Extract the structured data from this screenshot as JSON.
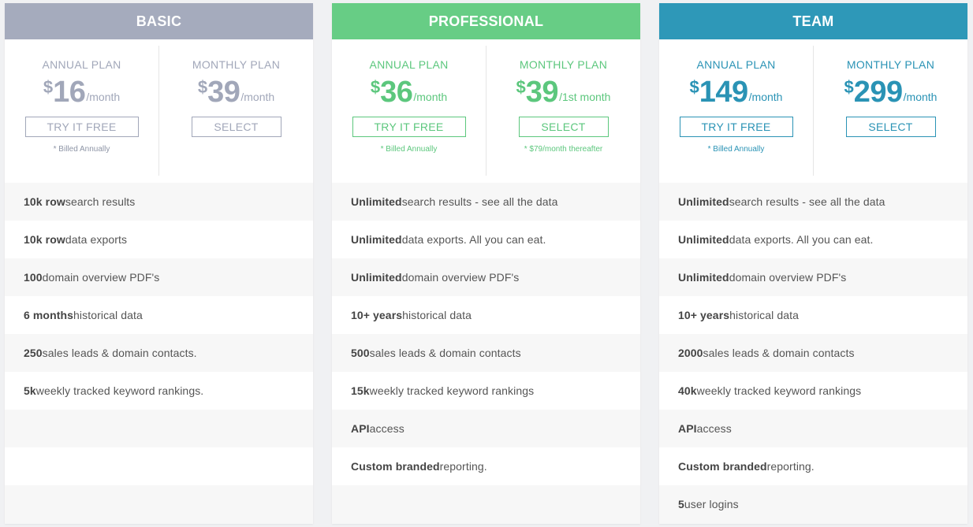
{
  "plans": [
    {
      "name": "BASIC",
      "header_color": "#a5abbd",
      "accent_color": "#a1a7b9",
      "note_color": "#8e95a6",
      "annual": {
        "label": "ANNUAL PLAN",
        "currency": "$",
        "amount": "16",
        "period": "/month",
        "button": "TRY IT FREE",
        "note": "* Billed Annually"
      },
      "monthly": {
        "label": "MONTHLY PLAN",
        "currency": "$",
        "amount": "39",
        "period": "/month",
        "button": "SELECT",
        "note": ""
      },
      "features": [
        {
          "bold": "10k row",
          "text": " search results"
        },
        {
          "bold": "10k row",
          "text": " data exports"
        },
        {
          "bold": "100",
          "text": " domain overview PDF's"
        },
        {
          "bold": "6 months",
          "text": " historical data"
        },
        {
          "bold": "250",
          "text": " sales leads & domain contacts."
        },
        {
          "bold": "5k",
          "text": " weekly tracked keyword rankings."
        },
        {
          "bold": "",
          "text": ""
        },
        {
          "bold": "",
          "text": ""
        },
        {
          "bold": "",
          "text": ""
        }
      ]
    },
    {
      "name": "PROFESSIONAL",
      "header_color": "#67cd85",
      "accent_color": "#5cc77d",
      "note_color": "#5cc77d",
      "annual": {
        "label": "ANNUAL PLAN",
        "currency": "$",
        "amount": "36",
        "period": "/month",
        "button": "TRY IT FREE",
        "note": "* Billed Annually"
      },
      "monthly": {
        "label": "MONTHLY PLAN",
        "currency": "$",
        "amount": "39",
        "period": "/1st month",
        "button": "SELECT",
        "note": "* $79/month thereafter"
      },
      "features": [
        {
          "bold": "Unlimited",
          "text": " search results - see all the data"
        },
        {
          "bold": "Unlimited",
          "text": " data exports. All you can eat."
        },
        {
          "bold": "Unlimited",
          "text": " domain overview PDF's"
        },
        {
          "bold": "10+ years",
          "text": " historical data"
        },
        {
          "bold": "500",
          "text": " sales leads & domain contacts"
        },
        {
          "bold": "15k",
          "text": " weekly tracked keyword rankings"
        },
        {
          "bold": "API",
          "text": " access"
        },
        {
          "bold": "Custom branded",
          "text": " reporting."
        },
        {
          "bold": "",
          "text": ""
        }
      ]
    },
    {
      "name": "TEAM",
      "header_color": "#2e98b8",
      "accent_color": "#2a93b5",
      "note_color": "#2a93b5",
      "annual": {
        "label": "ANNUAL PLAN",
        "currency": "$",
        "amount": "149",
        "period": "/month",
        "button": "TRY IT FREE",
        "note": "* Billed Annually"
      },
      "monthly": {
        "label": "MONTHLY PLAN",
        "currency": "$",
        "amount": "299",
        "period": "/month",
        "button": "SELECT",
        "note": ""
      },
      "features": [
        {
          "bold": "Unlimited",
          "text": " search results - see all the data"
        },
        {
          "bold": "Unlimited",
          "text": " data exports. All you can eat."
        },
        {
          "bold": "Unlimited",
          "text": " domain overview PDF's"
        },
        {
          "bold": "10+ years",
          "text": " historical data"
        },
        {
          "bold": "2000",
          "text": " sales leads & domain contacts"
        },
        {
          "bold": "40k",
          "text": " weekly tracked keyword rankings"
        },
        {
          "bold": "API",
          "text": " access"
        },
        {
          "bold": "Custom branded",
          "text": " reporting."
        },
        {
          "bold": "5",
          "text": " user logins"
        }
      ]
    }
  ]
}
